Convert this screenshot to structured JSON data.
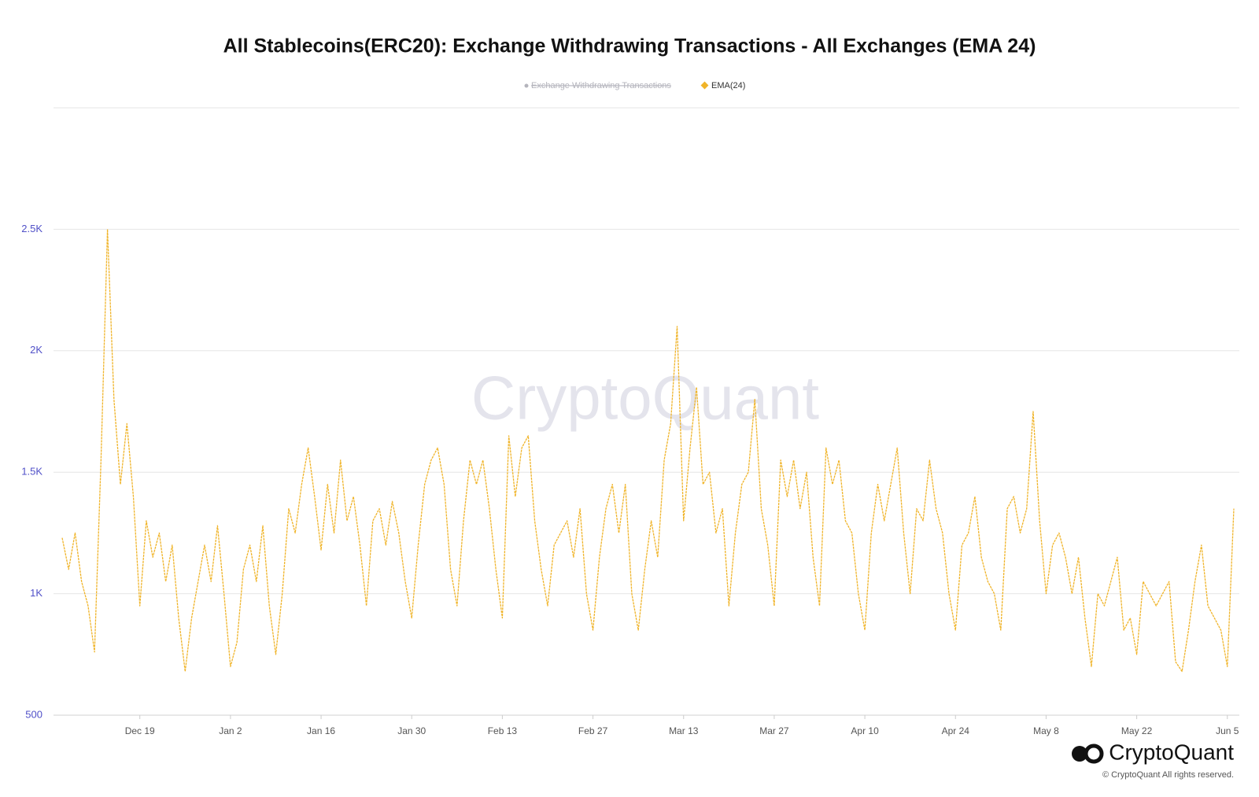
{
  "chart_data": {
    "type": "line",
    "title": "All Stablecoins(ERC20): Exchange Withdrawing Transactions - All Exchanges (EMA 24)",
    "hidden_series": [
      {
        "name": "Exchange Withdrawing Transactions",
        "color": "#b4b4bc"
      }
    ],
    "series": [
      {
        "name": "EMA(24)",
        "color": "#f0b429",
        "values": [
          1230,
          1100,
          1250,
          1050,
          950,
          760,
          1550,
          2500,
          1800,
          1450,
          1700,
          1400,
          950,
          1300,
          1150,
          1250,
          1050,
          1200,
          900,
          680,
          900,
          1050,
          1200,
          1050,
          1280,
          1000,
          700,
          800,
          1100,
          1200,
          1050,
          1280,
          950,
          750,
          1000,
          1350,
          1250,
          1450,
          1600,
          1400,
          1180,
          1450,
          1250,
          1550,
          1300,
          1400,
          1200,
          950,
          1300,
          1350,
          1200,
          1380,
          1250,
          1050,
          900,
          1200,
          1450,
          1550,
          1600,
          1450,
          1100,
          950,
          1300,
          1550,
          1450,
          1550,
          1350,
          1100,
          900,
          1650,
          1400,
          1600,
          1650,
          1300,
          1100,
          950,
          1200,
          1250,
          1300,
          1150,
          1350,
          1000,
          850,
          1150,
          1350,
          1450,
          1250,
          1450,
          1000,
          850,
          1100,
          1300,
          1150,
          1550,
          1700,
          2100,
          1300,
          1600,
          1850,
          1450,
          1500,
          1250,
          1350,
          950,
          1250,
          1450,
          1500,
          1800,
          1350,
          1200,
          950,
          1550,
          1400,
          1550,
          1350,
          1500,
          1150,
          950,
          1600,
          1450,
          1550,
          1300,
          1250,
          1000,
          850,
          1250,
          1450,
          1300,
          1450,
          1600,
          1250,
          1000,
          1350,
          1300,
          1550,
          1350,
          1250,
          1000,
          850,
          1200,
          1250,
          1400,
          1150,
          1050,
          1000,
          850,
          1350,
          1400,
          1250,
          1350,
          1750,
          1300,
          1000,
          1200,
          1250,
          1150,
          1000,
          1150,
          900,
          700,
          1000,
          950,
          1050,
          1150,
          850,
          900,
          750,
          1050,
          1000,
          950,
          1000,
          1050,
          720,
          680,
          850,
          1050,
          1200,
          950,
          900,
          850,
          700,
          1350
        ]
      }
    ],
    "categories": [
      null,
      null,
      null,
      null,
      null,
      null,
      null,
      null,
      null,
      null,
      null,
      null,
      "Dec 19",
      null,
      null,
      null,
      null,
      null,
      null,
      null,
      null,
      null,
      null,
      null,
      null,
      null,
      "Jan 2",
      null,
      null,
      null,
      null,
      null,
      null,
      null,
      null,
      null,
      null,
      null,
      null,
      null,
      "Jan 16",
      null,
      null,
      null,
      null,
      null,
      null,
      null,
      null,
      null,
      null,
      null,
      null,
      null,
      "Jan 30",
      null,
      null,
      null,
      null,
      null,
      null,
      null,
      null,
      null,
      null,
      null,
      null,
      null,
      "Feb 13",
      null,
      null,
      null,
      null,
      null,
      null,
      null,
      null,
      null,
      null,
      null,
      null,
      null,
      "Feb 27",
      null,
      null,
      null,
      null,
      null,
      null,
      null,
      null,
      null,
      null,
      null,
      null,
      null,
      "Mar 13",
      null,
      null,
      null,
      null,
      null,
      null,
      null,
      null,
      null,
      null,
      null,
      null,
      null,
      "Mar 27",
      null,
      null,
      null,
      null,
      null,
      null,
      null,
      null,
      null,
      null,
      null,
      null,
      null,
      "Apr 10",
      null,
      null,
      null,
      null,
      null,
      null,
      null,
      null,
      null,
      null,
      null,
      null,
      null,
      "Apr 24",
      null,
      null,
      null,
      null,
      null,
      null,
      null,
      null,
      null,
      null,
      null,
      null,
      null,
      "May 8",
      null,
      null,
      null,
      null,
      null,
      null,
      null,
      null,
      null,
      null,
      null,
      null,
      null,
      "May 22",
      null,
      null,
      null,
      null,
      null,
      null,
      null,
      null,
      null,
      null,
      null,
      null,
      null,
      "Jun 5",
      null
    ],
    "ylim": [
      500,
      3000
    ],
    "yticks": [
      500,
      {
        "value": 1000,
        "label": "1K"
      },
      {
        "value": 1500,
        "label": "1.5K"
      },
      {
        "value": 2000,
        "label": "2K"
      },
      {
        "value": 2500,
        "label": "2.5K"
      }
    ],
    "grid": true,
    "watermark": "CryptoQuant",
    "brand": "CryptoQuant",
    "copyright": "© CryptoQuant All rights reserved."
  }
}
